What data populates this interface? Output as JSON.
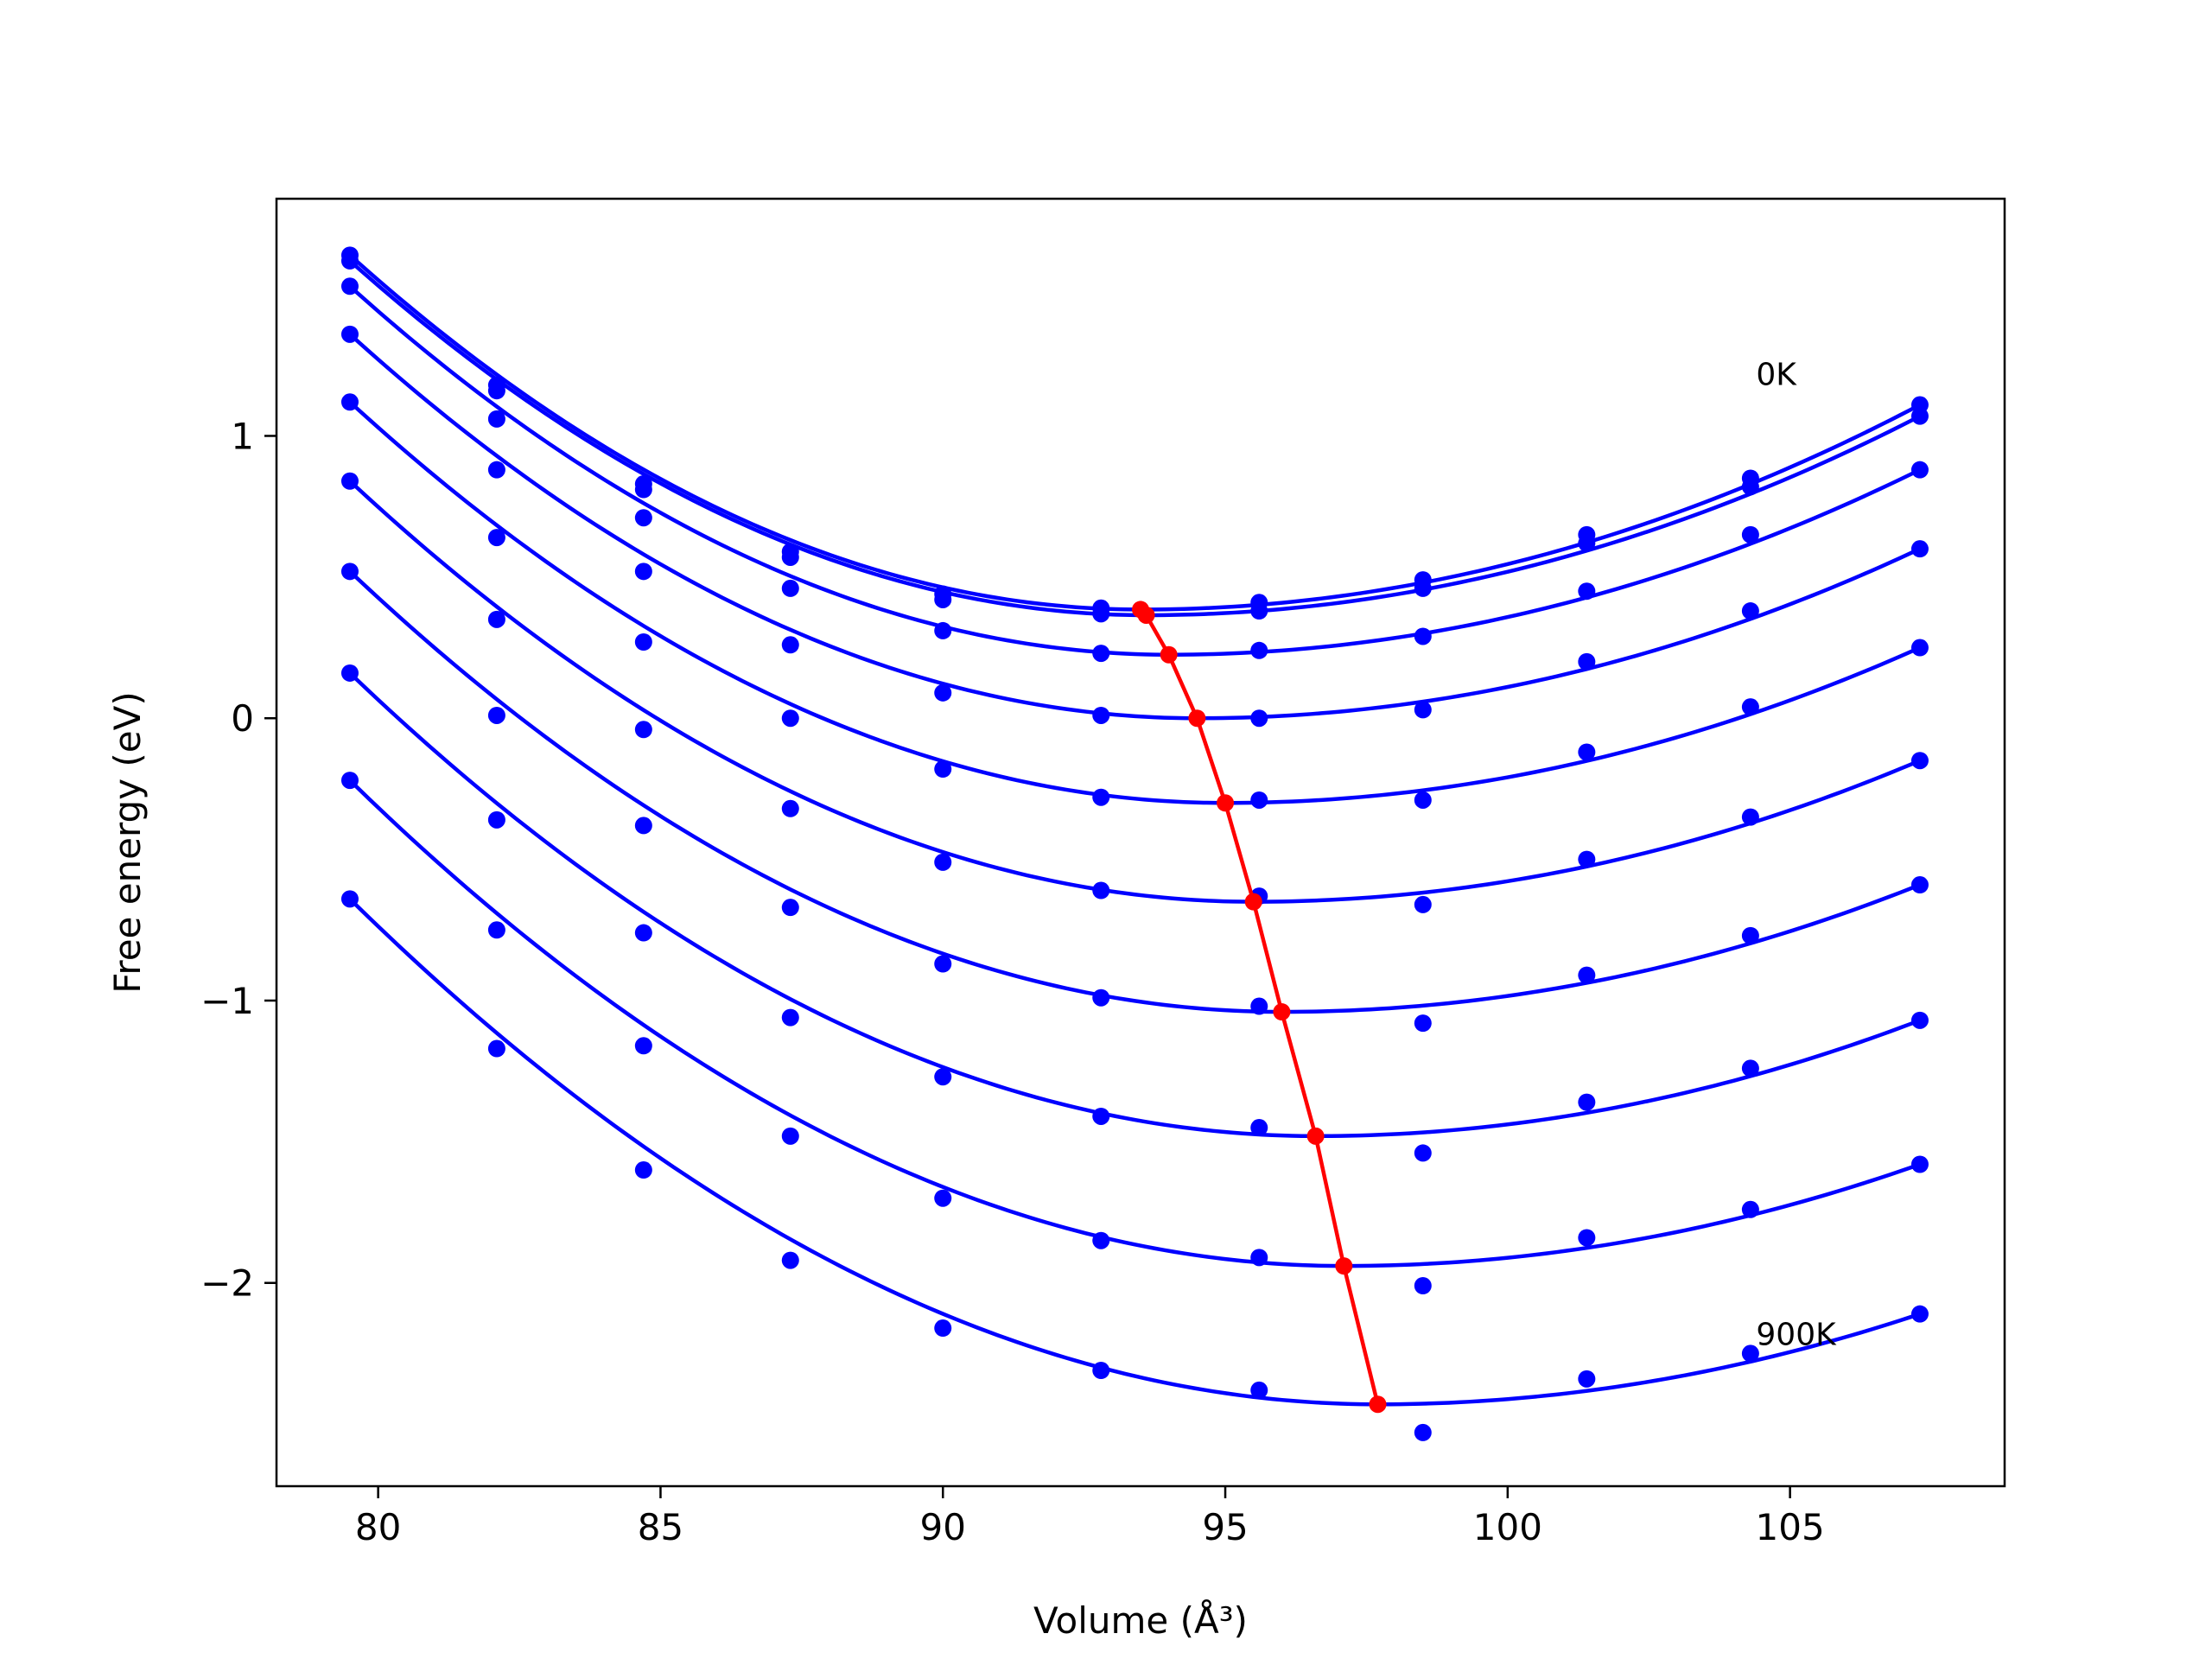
{
  "chart_data": {
    "type": "line",
    "xlabel": "Volume (Å³)",
    "ylabel": "Free energy (eV)",
    "xlim": [
      78.2,
      108.8
    ],
    "ylim": [
      -2.72,
      1.84
    ],
    "xticks": [
      80,
      85,
      90,
      95,
      100,
      105
    ],
    "yticks": [
      -2,
      -1,
      0,
      1
    ],
    "xtick_labels": [
      "80",
      "85",
      "90",
      "95",
      "100",
      "105"
    ],
    "ytick_labels": [
      "−2",
      "−1",
      "0",
      "1"
    ],
    "grid": false,
    "annotations": [
      {
        "text": "0K",
        "x": 104.4,
        "y": 1.18
      },
      {
        "text": "900K",
        "x": 104.4,
        "y": -2.22
      }
    ],
    "x": [
      79.5,
      82.1,
      84.7,
      87.3,
      90.0,
      92.8,
      95.6,
      98.5,
      101.4,
      104.3,
      107.3
    ],
    "series": [
      {
        "values": [
          1.64,
          1.18,
          0.83,
          0.59,
          0.44,
          0.39,
          0.41,
          0.49,
          0.65,
          0.85,
          1.11
        ],
        "min": {
          "x": 93.5,
          "y": 0.385
        }
      },
      {
        "values": [
          1.62,
          1.16,
          0.81,
          0.57,
          0.42,
          0.37,
          0.38,
          0.46,
          0.62,
          0.82,
          1.07
        ],
        "min": {
          "x": 93.6,
          "y": 0.365
        }
      },
      {
        "values": [
          1.53,
          1.06,
          0.71,
          0.46,
          0.31,
          0.23,
          0.24,
          0.29,
          0.45,
          0.65,
          0.88
        ],
        "min": {
          "x": 94.0,
          "y": 0.225
        }
      },
      {
        "values": [
          1.36,
          0.88,
          0.52,
          0.26,
          0.09,
          0.01,
          0.0,
          0.03,
          0.2,
          0.38,
          0.6
        ],
        "min": {
          "x": 94.5,
          "y": 0.0
        }
      },
      {
        "values": [
          1.12,
          0.64,
          0.27,
          0.0,
          -0.18,
          -0.28,
          -0.29,
          -0.29,
          -0.12,
          0.04,
          0.25
        ],
        "min": {
          "x": 95.0,
          "y": -0.3
        }
      },
      {
        "values": [
          0.84,
          0.35,
          -0.04,
          -0.32,
          -0.51,
          -0.61,
          -0.63,
          -0.66,
          -0.5,
          -0.35,
          -0.15
        ],
        "min": {
          "x": 95.5,
          "y": -0.65
        }
      },
      {
        "values": [
          0.52,
          0.01,
          -0.38,
          -0.67,
          -0.87,
          -0.99,
          -1.02,
          -1.08,
          -0.91,
          -0.77,
          -0.59
        ],
        "min": {
          "x": 96.0,
          "y": -1.04
        }
      },
      {
        "values": [
          0.16,
          -0.36,
          -0.76,
          -1.06,
          -1.27,
          -1.41,
          -1.45,
          -1.54,
          -1.36,
          -1.24,
          -1.07
        ],
        "min": {
          "x": 96.6,
          "y": -1.48
        }
      },
      {
        "values": [
          -0.22,
          -0.75,
          -1.16,
          -1.48,
          -1.7,
          -1.85,
          -1.91,
          -2.01,
          -1.84,
          -1.74,
          -1.58
        ],
        "min": {
          "x": 97.1,
          "y": -1.94
        }
      },
      {
        "values": [
          -0.64,
          -1.17,
          -1.6,
          -1.92,
          -2.16,
          -2.31,
          -2.38,
          -2.53,
          -2.34,
          -2.25,
          -2.11
        ],
        "min": {
          "x": 97.7,
          "y": -2.43
        }
      }
    ],
    "series_color": "#0000ff",
    "minima_color": "#ff0000"
  }
}
